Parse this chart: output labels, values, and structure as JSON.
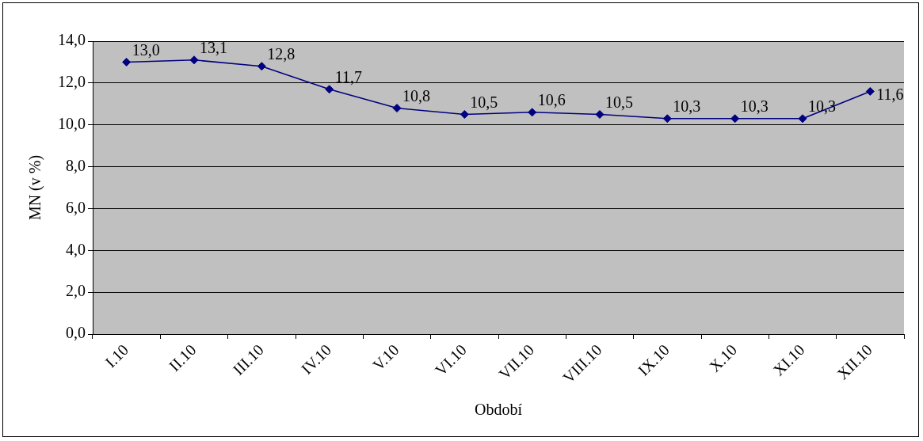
{
  "chart_data": {
    "type": "line",
    "xlabel": "Období",
    "ylabel": "MN (v %)",
    "categories": [
      "I.10",
      "II.10",
      "III.10",
      "IV.10",
      "V.10",
      "VI.10",
      "VII.10",
      "VIII.10",
      "IX.10",
      "X.10",
      "XI.10",
      "XII.10"
    ],
    "series": [
      {
        "color": "#000080",
        "values": [
          13.0,
          13.1,
          12.8,
          11.7,
          10.8,
          10.5,
          10.6,
          10.5,
          10.3,
          10.3,
          10.3,
          11.6
        ],
        "value_labels": [
          "13,0",
          "13,1",
          "12,8",
          "11,7",
          "10,8",
          "10,5",
          "10,6",
          "10,5",
          "10,3",
          "10,3",
          "10,3",
          "11,6"
        ]
      }
    ],
    "ylim": [
      0,
      14
    ],
    "yticks": [
      {
        "value": 0,
        "label": "0,0"
      },
      {
        "value": 2,
        "label": "2,0"
      },
      {
        "value": 4,
        "label": "4,0"
      },
      {
        "value": 6,
        "label": "6,0"
      },
      {
        "value": 8,
        "label": "8,0"
      },
      {
        "value": 10,
        "label": "10,0"
      },
      {
        "value": 12,
        "label": "12,0"
      },
      {
        "value": 14,
        "label": "14,0"
      }
    ],
    "grid": "y",
    "legend": false,
    "marker": "diamond",
    "line_style": "solid"
  }
}
